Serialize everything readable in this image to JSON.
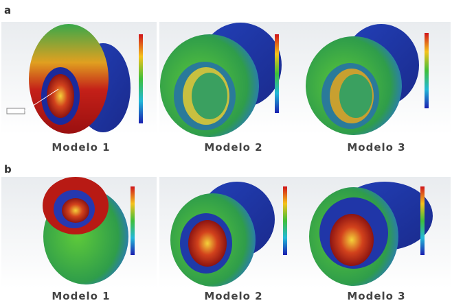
{
  "panels": [
    {
      "label": "a",
      "captions": [
        "Modelo 1",
        "Modelo 2",
        "Modelo 3"
      ]
    },
    {
      "label": "b",
      "captions": [
        "Modelo 1",
        "Modelo 2",
        "Modelo 3"
      ]
    }
  ]
}
